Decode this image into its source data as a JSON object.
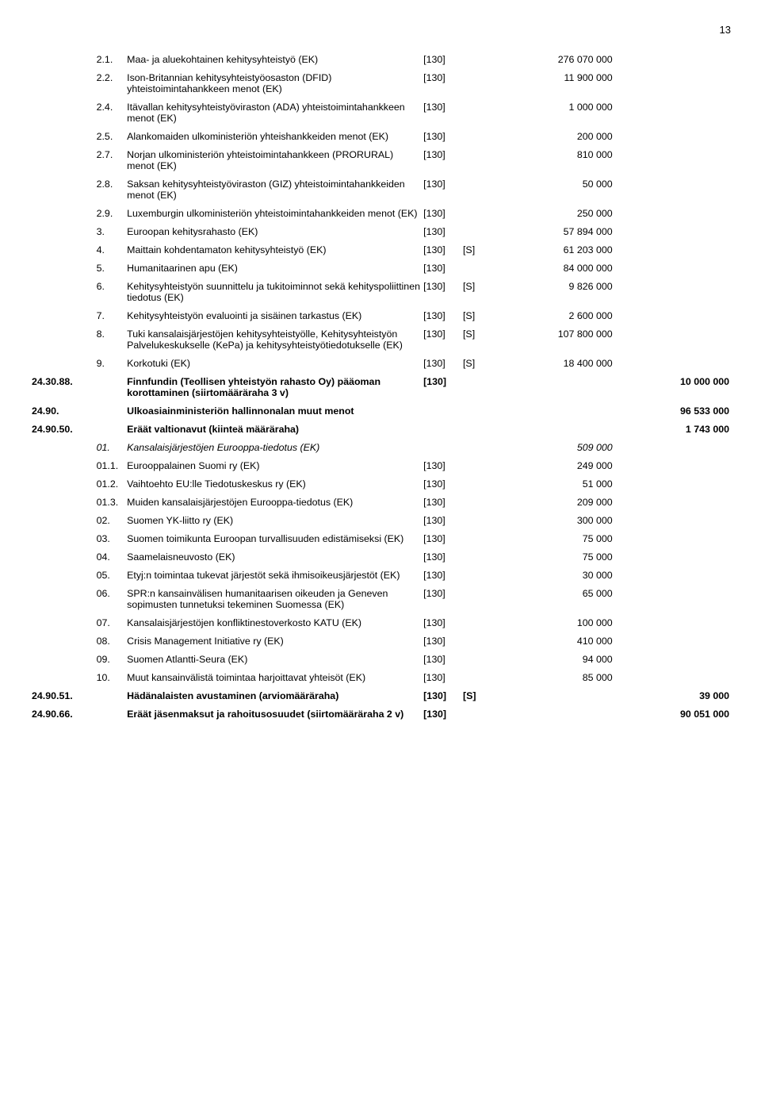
{
  "page_number": "13",
  "rows": [
    {
      "code": "",
      "num": "2.1.",
      "desc": "Maa- ja aluekohtainen kehitysyhteistyö (EK)",
      "tag": "[130]",
      "s": "",
      "amt1": "276 070 000",
      "amt2": "",
      "bold": false,
      "italic": false
    },
    {
      "code": "",
      "num": "2.2.",
      "desc": "Ison-Britannian kehitysyhteistyöosaston (DFID) yhteistoimintahankkeen menot (EK)",
      "tag": "[130]",
      "s": "",
      "amt1": "11 900 000",
      "amt2": "",
      "bold": false
    },
    {
      "code": "",
      "num": "2.4.",
      "desc": "Itävallan kehitysyhteistyöviraston (ADA) yhteistoimintahankkeen menot (EK)",
      "tag": "[130]",
      "s": "",
      "amt1": "1 000 000",
      "amt2": "",
      "bold": false
    },
    {
      "code": "",
      "num": "2.5.",
      "desc": "Alankomaiden ulkoministeriön yhteishankkeiden menot (EK)",
      "tag": "[130]",
      "s": "",
      "amt1": "200 000",
      "amt2": "",
      "bold": false
    },
    {
      "code": "",
      "num": "2.7.",
      "desc": "Norjan ulkoministeriön yhteistoimintahankkeen (PRORURAL) menot (EK)",
      "tag": "[130]",
      "s": "",
      "amt1": "810 000",
      "amt2": "",
      "bold": false
    },
    {
      "code": "",
      "num": "2.8.",
      "desc": "Saksan kehitysyhteistyöviraston (GIZ) yhteistoimintahankkeiden menot (EK)",
      "tag": "[130]",
      "s": "",
      "amt1": "50 000",
      "amt2": "",
      "bold": false
    },
    {
      "code": "",
      "num": "2.9.",
      "desc": "Luxemburgin ulkoministeriön yhteistoimintahankkeiden menot (EK)",
      "tag": "[130]",
      "s": "",
      "amt1": "250 000",
      "amt2": "",
      "bold": false
    },
    {
      "code": "",
      "num": "3.",
      "desc": "Euroopan kehitysrahasto (EK)",
      "tag": "[130]",
      "s": "",
      "amt1": "57 894 000",
      "amt2": "",
      "bold": false
    },
    {
      "code": "",
      "num": "4.",
      "desc": "Maittain kohdentamaton kehitysyhteistyö (EK)",
      "tag": "[130]",
      "s": "[S]",
      "amt1": "61 203 000",
      "amt2": "",
      "bold": false
    },
    {
      "code": "",
      "num": "5.",
      "desc": "Humanitaarinen apu (EK)",
      "tag": "[130]",
      "s": "",
      "amt1": "84 000 000",
      "amt2": "",
      "bold": false
    },
    {
      "code": "",
      "num": "6.",
      "desc": "Kehitysyhteistyön suunnittelu ja tukitoiminnot sekä kehityspoliittinen tiedotus (EK)",
      "tag": "[130]",
      "s": "[S]",
      "amt1": "9 826 000",
      "amt2": "",
      "bold": false
    },
    {
      "code": "",
      "num": "7.",
      "desc": "Kehitysyhteistyön evaluointi ja sisäinen tarkastus (EK)",
      "tag": "[130]",
      "s": "[S]",
      "amt1": "2 600 000",
      "amt2": "",
      "bold": false
    },
    {
      "code": "",
      "num": "8.",
      "desc": "Tuki kansalaisjärjestöjen kehitysyhteistyölle, Kehitysyhteistyön Palvelukeskukselle (KePa) ja kehitysyhteistyötiedotukselle (EK)",
      "tag": "[130]",
      "s": "[S]",
      "amt1": "107 800 000",
      "amt2": "",
      "bold": false
    },
    {
      "code": "",
      "num": "9.",
      "desc": "Korkotuki (EK)",
      "tag": "[130]",
      "s": "[S]",
      "amt1": "18 400 000",
      "amt2": "",
      "bold": false
    },
    {
      "code": "24.30.88.",
      "num": "",
      "desc": "Finnfundin (Teollisen yhteistyön rahasto Oy) pääoman korottaminen (siirtomääräraha 3 v)",
      "tag": "[130]",
      "s": "",
      "amt1": "",
      "amt2": "10 000 000",
      "bold": true
    },
    {
      "code": "24.90.",
      "num": "",
      "desc": "Ulkoasiainministeriön hallinnonalan muut menot",
      "tag": "",
      "s": "",
      "amt1": "",
      "amt2": "96 533 000",
      "bold": true
    },
    {
      "code": "24.90.50.",
      "num": "",
      "desc": "Eräät valtionavut (kiinteä määräraha)",
      "tag": "",
      "s": "",
      "amt1": "",
      "amt2": "1 743 000",
      "bold": true
    },
    {
      "code": "",
      "num": "01.",
      "desc": "Kansalaisjärjestöjen Eurooppa-tiedotus (EK)",
      "tag": "",
      "s": "",
      "amt1": "509 000",
      "amt2": "",
      "bold": false,
      "italic": true
    },
    {
      "code": "",
      "num": "01.1.",
      "desc": "Eurooppalainen Suomi ry (EK)",
      "tag": "[130]",
      "s": "",
      "amt1": "249 000",
      "amt2": "",
      "bold": false
    },
    {
      "code": "",
      "num": "01.2.",
      "desc": "Vaihtoehto EU:lle Tiedotuskeskus ry (EK)",
      "tag": "[130]",
      "s": "",
      "amt1": "51 000",
      "amt2": "",
      "bold": false
    },
    {
      "code": "",
      "num": "01.3.",
      "desc": "Muiden kansalaisjärjestöjen Eurooppa-tiedotus (EK)",
      "tag": "[130]",
      "s": "",
      "amt1": "209 000",
      "amt2": "",
      "bold": false
    },
    {
      "code": "",
      "num": "02.",
      "desc": "Suomen YK-liitto ry (EK)",
      "tag": "[130]",
      "s": "",
      "amt1": "300 000",
      "amt2": "",
      "bold": false
    },
    {
      "code": "",
      "num": "03.",
      "desc": "Suomen toimikunta Euroopan turvallisuuden edistämiseksi (EK)",
      "tag": "[130]",
      "s": "",
      "amt1": "75 000",
      "amt2": "",
      "bold": false
    },
    {
      "code": "",
      "num": "04.",
      "desc": "Saamelaisneuvosto (EK)",
      "tag": "[130]",
      "s": "",
      "amt1": "75 000",
      "amt2": "",
      "bold": false
    },
    {
      "code": "",
      "num": "05.",
      "desc": "Etyj:n toimintaa tukevat järjestöt sekä ihmisoikeusjärjestöt (EK)",
      "tag": "[130]",
      "s": "",
      "amt1": "30 000",
      "amt2": "",
      "bold": false
    },
    {
      "code": "",
      "num": "06.",
      "desc": "SPR:n kansainvälisen humanitaarisen oikeuden ja Geneven sopimusten tunnetuksi tekeminen Suomessa (EK)",
      "tag": "[130]",
      "s": "",
      "amt1": "65 000",
      "amt2": "",
      "bold": false
    },
    {
      "code": "",
      "num": "07.",
      "desc": "Kansalaisjärjestöjen konfliktinestoverkosto KATU (EK)",
      "tag": "[130]",
      "s": "",
      "amt1": "100 000",
      "amt2": "",
      "bold": false
    },
    {
      "code": "",
      "num": "08.",
      "desc": "Crisis Management Initiative ry (EK)",
      "tag": "[130]",
      "s": "",
      "amt1": "410 000",
      "amt2": "",
      "bold": false
    },
    {
      "code": "",
      "num": "09.",
      "desc": "Suomen Atlantti-Seura (EK)",
      "tag": "[130]",
      "s": "",
      "amt1": "94 000",
      "amt2": "",
      "bold": false
    },
    {
      "code": "",
      "num": "10.",
      "desc": "Muut kansainvälistä toimintaa harjoittavat yhteisöt (EK)",
      "tag": "[130]",
      "s": "",
      "amt1": "85 000",
      "amt2": "",
      "bold": false
    },
    {
      "code": "24.90.51.",
      "num": "",
      "desc": "Hädänalaisten avustaminen (arviomääräraha)",
      "tag": "[130]",
      "s": "[S]",
      "amt1": "",
      "amt2": "39 000",
      "bold": true
    },
    {
      "code": "24.90.66.",
      "num": "",
      "desc": "Eräät jäsenmaksut ja rahoitusosuudet (siirtomääräraha 2 v)",
      "tag": "[130]",
      "s": "",
      "amt1": "",
      "amt2": "90 051 000",
      "bold": true
    }
  ]
}
